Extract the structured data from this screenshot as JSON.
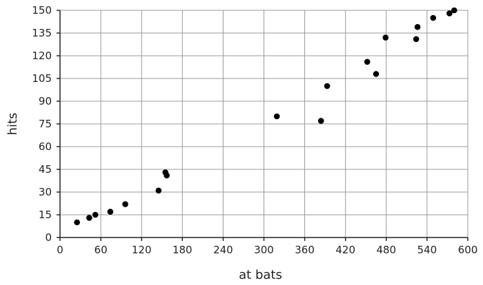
{
  "chart_data": {
    "type": "scatter",
    "title": "",
    "xlabel": "at bats",
    "ylabel": "hits",
    "xlim": [
      0,
      600
    ],
    "ylim": [
      0,
      150
    ],
    "xticks": [
      0,
      60,
      120,
      180,
      240,
      300,
      360,
      420,
      480,
      540,
      600
    ],
    "yticks": [
      0,
      15,
      30,
      45,
      60,
      75,
      90,
      105,
      120,
      135,
      150
    ],
    "grid": true,
    "legend": "none",
    "marker_color": "#000000",
    "points": [
      {
        "x": 25,
        "y": 10
      },
      {
        "x": 43,
        "y": 13
      },
      {
        "x": 52,
        "y": 15
      },
      {
        "x": 74,
        "y": 17
      },
      {
        "x": 96,
        "y": 22
      },
      {
        "x": 145,
        "y": 31
      },
      {
        "x": 155,
        "y": 43
      },
      {
        "x": 157,
        "y": 41
      },
      {
        "x": 319,
        "y": 80
      },
      {
        "x": 384,
        "y": 77
      },
      {
        "x": 393,
        "y": 100
      },
      {
        "x": 452,
        "y": 116
      },
      {
        "x": 465,
        "y": 108
      },
      {
        "x": 479,
        "y": 132
      },
      {
        "x": 524,
        "y": 131
      },
      {
        "x": 526,
        "y": 139
      },
      {
        "x": 549,
        "y": 145
      },
      {
        "x": 573,
        "y": 148
      },
      {
        "x": 580,
        "y": 150
      }
    ]
  }
}
